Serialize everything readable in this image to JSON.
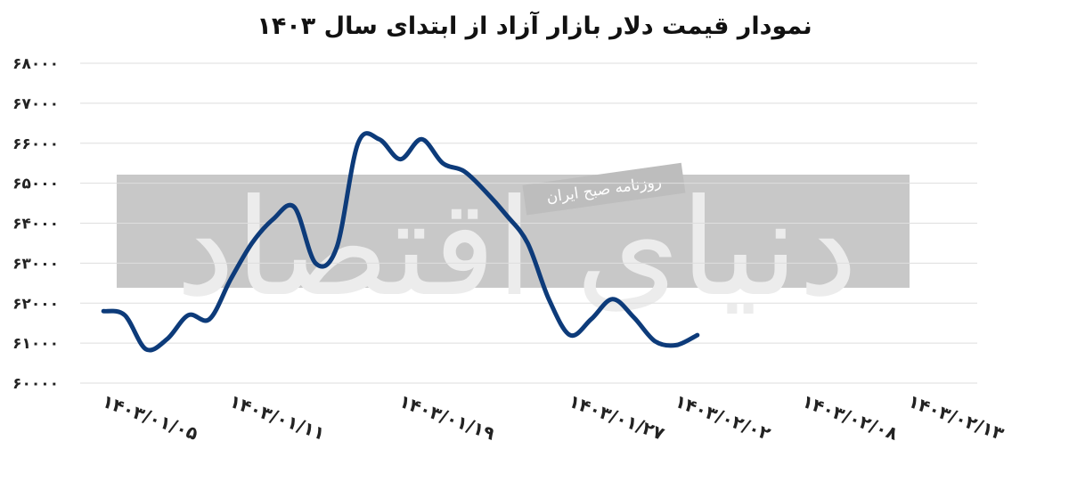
{
  "watermark": {
    "logo_text": "دنیای اقتصاد",
    "subtitle": "روزنامه صبح ایران"
  },
  "colors": {
    "line": "#0d3b7a",
    "grid": "#dedede",
    "watermark_band": "#c8c8c8"
  },
  "chart_data": {
    "type": "line",
    "title": "نمودار قیمت دلار بازار آزاد از ابتدای سال ۱۴۰۳",
    "xlabel": "",
    "ylabel": "",
    "ylim": [
      60000,
      68000
    ],
    "grid": true,
    "legend": "none",
    "y_ticks": [
      {
        "value": 60000,
        "label": "۶۰۰۰۰"
      },
      {
        "value": 61000,
        "label": "۶۱۰۰۰"
      },
      {
        "value": 62000,
        "label": "۶۲۰۰۰"
      },
      {
        "value": 63000,
        "label": "۶۳۰۰۰"
      },
      {
        "value": 64000,
        "label": "۶۴۰۰۰"
      },
      {
        "value": 65000,
        "label": "۶۵۰۰۰"
      },
      {
        "value": 66000,
        "label": "۶۶۰۰۰"
      },
      {
        "value": 67000,
        "label": "۶۷۰۰۰"
      },
      {
        "value": 68000,
        "label": "۶۸۰۰۰"
      }
    ],
    "x_ticks": [
      {
        "index": 0,
        "label": "۱۴۰۳/۰۱/۰۵"
      },
      {
        "index": 6,
        "label": "۱۴۰۳/۰۱/۱۱"
      },
      {
        "index": 14,
        "label": "۱۴۰۳/۰۱/۱۹"
      },
      {
        "index": 22,
        "label": "۱۴۰۳/۰۱/۲۷"
      },
      {
        "index": 27,
        "label": "۱۴۰۳/۰۲/۰۲"
      },
      {
        "index": 33,
        "label": "۱۴۰۳/۰۲/۰۸"
      },
      {
        "index": 38,
        "label": "۱۴۰۳/۰۲/۱۳"
      }
    ],
    "x_range": [
      -1.1,
      41.2
    ],
    "values": [
      61800,
      61700,
      60850,
      61100,
      61700,
      61600,
      62600,
      63500,
      64100,
      64400,
      63000,
      63400,
      66000,
      66100,
      65600,
      66100,
      65500,
      65300,
      64800,
      64200,
      63500,
      62100,
      61200,
      61600,
      62100,
      61650,
      61050,
      60950,
      61200
    ]
  }
}
